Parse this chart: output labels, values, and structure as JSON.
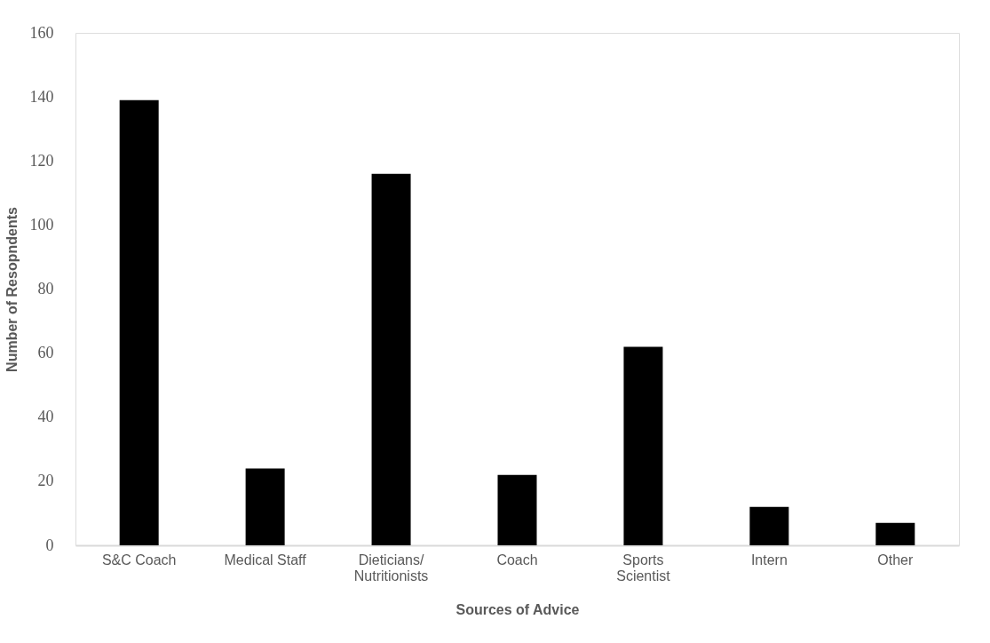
{
  "chart_data": {
    "type": "bar",
    "xlabel": "Sources of Advice",
    "ylabel": "Number of Resopndents",
    "categories": [
      "S&C Coach",
      "Medical Staff",
      "Dieticians/\nNutritionists",
      "Coach",
      "Sports\nScientist",
      "Intern",
      "Other"
    ],
    "values": [
      139,
      24,
      116,
      22,
      62,
      12,
      7
    ],
    "color": "#000000",
    "ylim": [
      0,
      160
    ],
    "yticks": [
      0,
      20,
      40,
      60,
      80,
      100,
      120,
      140,
      160
    ],
    "grid": false,
    "legend": false
  }
}
